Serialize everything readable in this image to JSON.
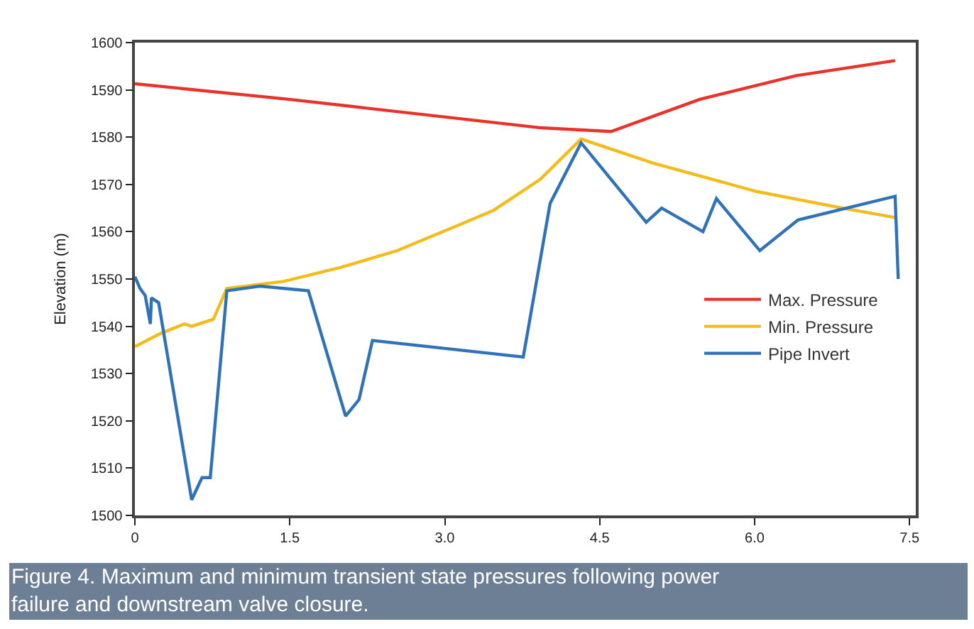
{
  "chart_data": {
    "type": "line",
    "ylabel": "Elevation (m)",
    "xlim": [
      0,
      7.56
    ],
    "xticks": [
      0,
      1.5,
      {
        "value": 3,
        "label": "3.0"
      },
      4.5,
      {
        "value": 6,
        "label": "6.0"
      },
      7.5
    ],
    "ylim": [
      1500,
      1600
    ],
    "yticks": [
      1500,
      1510,
      1520,
      1530,
      1540,
      1550,
      1560,
      1570,
      1580,
      1590,
      1600
    ],
    "legend": "right",
    "marker": "none",
    "line_style": "solid",
    "series": [
      {
        "name": "Max. Pressure",
        "color": "#e8332a",
        "x": [
          0,
          1.49,
          3.92,
          4.61,
          5.47,
          6.4,
          7.36
        ],
        "values": [
          1591.3,
          1588,
          1582,
          1581.2,
          1588,
          1593,
          1596.2
        ]
      },
      {
        "name": "Min. Pressure",
        "color": "#f2bd1c",
        "x": [
          0,
          0.25,
          0.48,
          0.55,
          0.76,
          0.89,
          1.44,
          2.0,
          2.54,
          3.09,
          3.47,
          3.92,
          4.32,
          5.02,
          6.02,
          6.85,
          7.36
        ],
        "values": [
          1535.7,
          1538.5,
          1540.5,
          1540,
          1541.5,
          1548,
          1549.5,
          1552.5,
          1556,
          1561,
          1564.5,
          1571,
          1579.6,
          1574.5,
          1568.5,
          1565,
          1563
        ]
      },
      {
        "name": "Pipe Invert",
        "color": "#2f72b8",
        "x": [
          0,
          0.05,
          0.1,
          0.15,
          0.16,
          0.23,
          0.55,
          0.65,
          0.73,
          0.89,
          1.21,
          1.68,
          2.04,
          2.17,
          2.3,
          3.76,
          4.02,
          4.32,
          4.95,
          5.1,
          5.5,
          5.63,
          6.05,
          6.42,
          7.36,
          7.39
        ],
        "values": [
          1550.5,
          1548,
          1546.5,
          1540.5,
          1546,
          1545,
          1503.3,
          1508,
          1508,
          1547.5,
          1548.5,
          1547.5,
          1521,
          1524.5,
          1537,
          1533.5,
          1566,
          1578.8,
          1562,
          1565,
          1560,
          1567,
          1556,
          1562.5,
          1567.5,
          1550
        ]
      }
    ],
    "annotations": [
      "Figure 4. Maximum and minimum transient state pressures following power failure and downstream valve closure."
    ]
  }
}
